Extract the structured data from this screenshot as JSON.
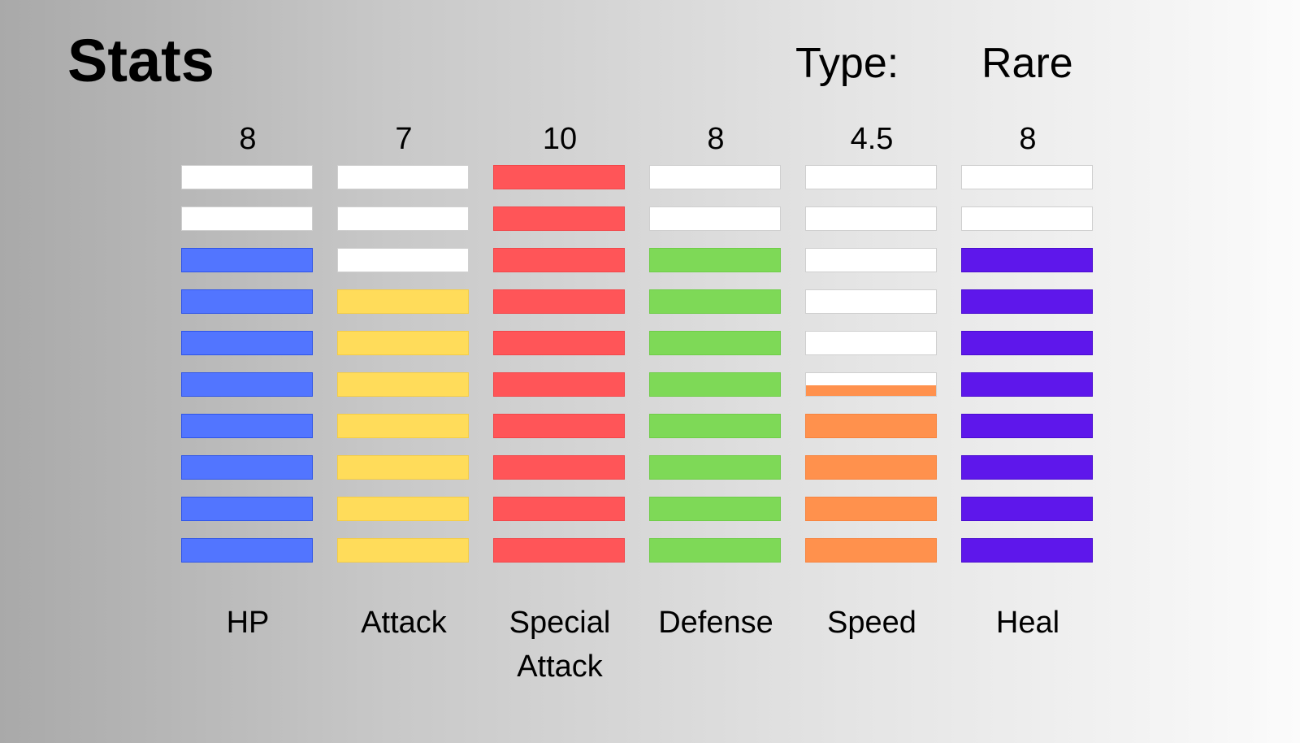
{
  "title": "Stats",
  "type": {
    "label": "Type:",
    "value": "Rare"
  },
  "chart_data": {
    "type": "bar",
    "max_segments": 10,
    "series": [
      {
        "name": "HP",
        "value": 8,
        "value_label": "8",
        "color": "#5275ff",
        "border": "#2f55e8"
      },
      {
        "name": "Attack",
        "value": 7,
        "value_label": "7",
        "color": "#ffdc5a",
        "border": "#f5cd45"
      },
      {
        "name": "Special\nAttack",
        "value": 10,
        "value_label": "10",
        "color": "#ff5558",
        "border": "#f2474a"
      },
      {
        "name": "Defense",
        "value": 8,
        "value_label": "8",
        "color": "#7ed957",
        "border": "#6fcd48"
      },
      {
        "name": "Speed",
        "value": 4.5,
        "value_label": "4.5",
        "color": "#ff914d",
        "border": "#f7843f"
      },
      {
        "name": "Heal",
        "value": 8,
        "value_label": "8",
        "color": "#5e17eb",
        "border": "#4a0dcf"
      }
    ]
  }
}
